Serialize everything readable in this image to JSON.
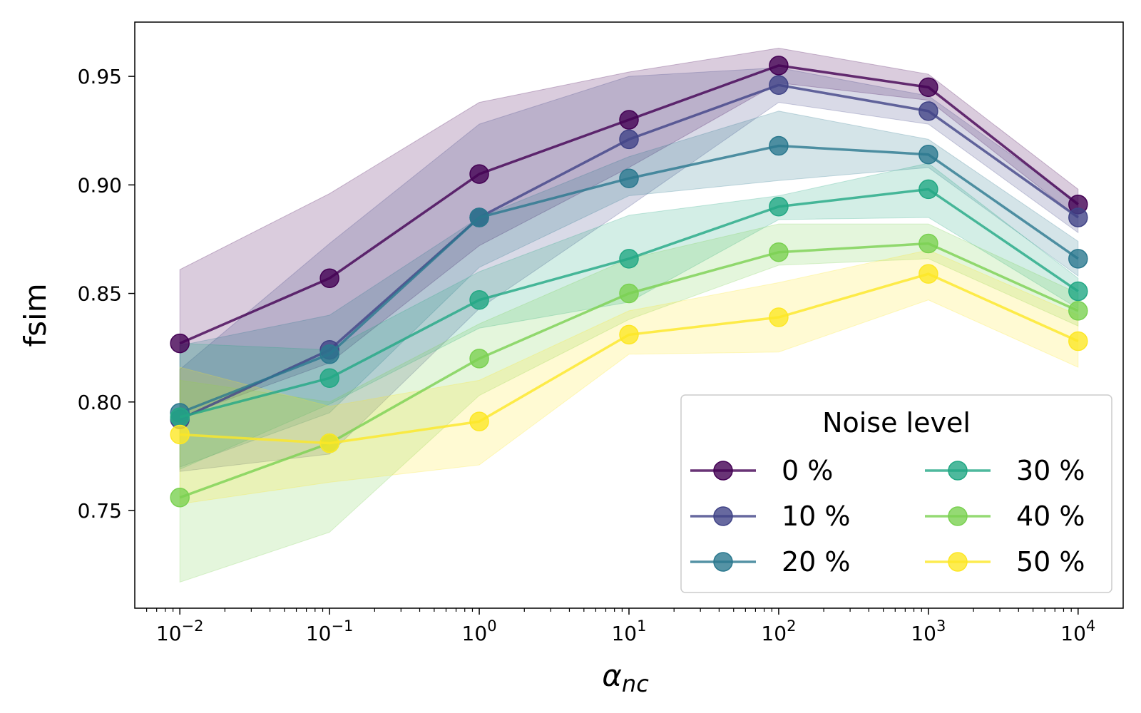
{
  "chart_data": {
    "type": "line",
    "title": "",
    "xlabel_base": "α",
    "xlabel_sub": "nc",
    "ylabel": "fsim",
    "xscale": "log",
    "xlim": [
      0.005,
      20000
    ],
    "ylim": [
      0.705,
      0.975
    ],
    "x": [
      0.01,
      0.1,
      1,
      10,
      100,
      1000,
      10000
    ],
    "x_ticks": [
      {
        "value": 0.01,
        "base": "10",
        "exp": "−2"
      },
      {
        "value": 0.1,
        "base": "10",
        "exp": "−1"
      },
      {
        "value": 1,
        "base": "10",
        "exp": "0"
      },
      {
        "value": 10,
        "base": "10",
        "exp": "1"
      },
      {
        "value": 100,
        "base": "10",
        "exp": "2"
      },
      {
        "value": 1000,
        "base": "10",
        "exp": "3"
      },
      {
        "value": 10000,
        "base": "10",
        "exp": "4"
      }
    ],
    "y_ticks": [
      {
        "value": 0.75,
        "label": "0.75"
      },
      {
        "value": 0.8,
        "label": "0.80"
      },
      {
        "value": 0.85,
        "label": "0.85"
      },
      {
        "value": 0.9,
        "label": "0.90"
      },
      {
        "value": 0.95,
        "label": "0.95"
      }
    ],
    "legend": {
      "title": "Noise level",
      "placement": "lower-right",
      "columns": 2
    },
    "series": [
      {
        "name": "0 %",
        "color": "#440154",
        "values": [
          0.827,
          0.857,
          0.905,
          0.93,
          0.955,
          0.945,
          0.891
        ],
        "lower": [
          0.793,
          0.818,
          0.872,
          0.908,
          0.947,
          0.939,
          0.885
        ],
        "upper": [
          0.861,
          0.896,
          0.938,
          0.952,
          0.963,
          0.951,
          0.898
        ]
      },
      {
        "name": "10 %",
        "color": "#414487",
        "values": [
          0.792,
          0.824,
          0.885,
          0.921,
          0.946,
          0.934,
          0.885
        ],
        "lower": [
          0.768,
          0.776,
          0.843,
          0.89,
          0.938,
          0.928,
          0.878
        ],
        "upper": [
          0.815,
          0.873,
          0.928,
          0.95,
          0.954,
          0.941,
          0.892
        ]
      },
      {
        "name": "20 %",
        "color": "#2a788e",
        "values": [
          0.795,
          0.822,
          0.885,
          0.903,
          0.918,
          0.914,
          0.866
        ],
        "lower": [
          0.77,
          0.795,
          0.862,
          0.895,
          0.902,
          0.908,
          0.858
        ],
        "upper": [
          0.826,
          0.84,
          0.885,
          0.913,
          0.934,
          0.921,
          0.874
        ]
      },
      {
        "name": "30 %",
        "color": "#22a884",
        "values": [
          0.793,
          0.811,
          0.847,
          0.866,
          0.89,
          0.898,
          0.851
        ],
        "lower": [
          0.769,
          0.799,
          0.834,
          0.846,
          0.884,
          0.885,
          0.843
        ],
        "upper": [
          0.827,
          0.824,
          0.86,
          0.886,
          0.895,
          0.91,
          0.857
        ]
      },
      {
        "name": "40 %",
        "color": "#7ad151",
        "values": [
          0.756,
          0.781,
          0.82,
          0.85,
          0.869,
          0.873,
          0.842
        ],
        "lower": [
          0.717,
          0.74,
          0.803,
          0.838,
          0.863,
          0.866,
          0.835
        ],
        "upper": [
          0.81,
          0.8,
          0.836,
          0.866,
          0.882,
          0.882,
          0.85
        ]
      },
      {
        "name": "50 %",
        "color": "#fde725",
        "values": [
          0.785,
          0.781,
          0.791,
          0.831,
          0.839,
          0.859,
          0.828
        ],
        "lower": [
          0.753,
          0.763,
          0.771,
          0.822,
          0.823,
          0.847,
          0.816
        ],
        "upper": [
          0.816,
          0.798,
          0.81,
          0.842,
          0.855,
          0.87,
          0.84
        ]
      }
    ]
  }
}
